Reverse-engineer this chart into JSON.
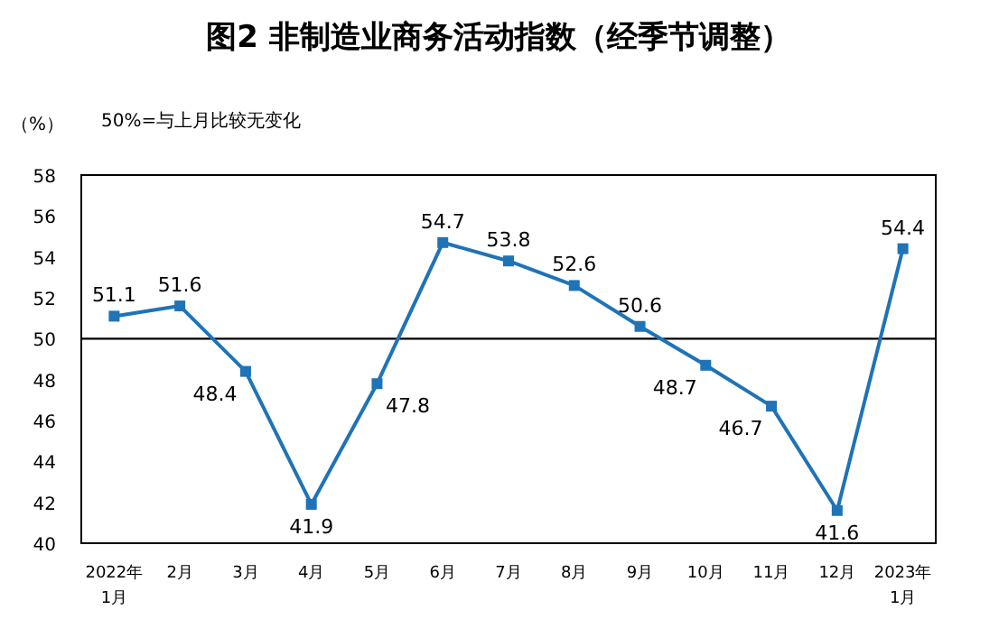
{
  "chart_data": {
    "type": "line",
    "title": "图2  非制造业商务活动指数（经季节调整）",
    "ylabel": "（%）",
    "annotations": [
      "50%=与上月比较无变化"
    ],
    "categories": [
      "2022年\n1月",
      "2月",
      "3月",
      "4月",
      "5月",
      "6月",
      "7月",
      "8月",
      "9月",
      "10月",
      "11月",
      "12月",
      "2023年\n1月"
    ],
    "series": [
      {
        "color": "#1f73b7",
        "values": [
          51.1,
          51.6,
          48.4,
          41.9,
          47.8,
          54.7,
          53.8,
          52.6,
          50.6,
          48.7,
          46.7,
          41.6,
          54.4
        ]
      }
    ],
    "ylim": [
      40,
      58
    ],
    "yticks": [
      40,
      42,
      44,
      46,
      48,
      50,
      52,
      54,
      56,
      58
    ],
    "ref_lines": [
      {
        "axis": "y",
        "value": 50,
        "color": "#000000"
      }
    ],
    "data_labels": true,
    "marker": "square",
    "line_style": "solid",
    "grid": false
  }
}
